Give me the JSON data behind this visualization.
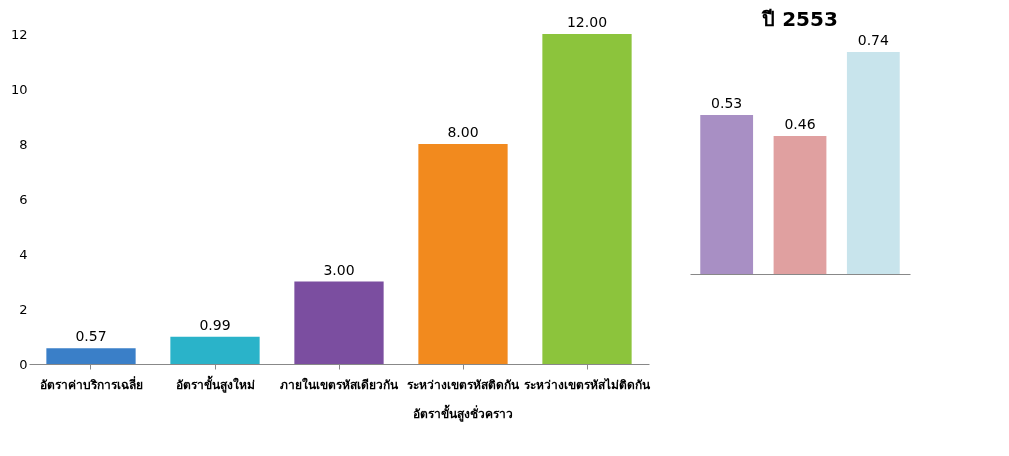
{
  "chart_data": [
    {
      "type": "bar",
      "categories": [
        "อัตราค่าบริการเฉลี่ย",
        "อัตราขั้นสูงใหม่",
        "ภายในเขตรหัสเดียวกัน",
        "ระหว่างเขตรหัสติดกัน",
        "ระหว่างเขตรหัสไม่ติดกัน"
      ],
      "values": [
        0.57,
        0.99,
        3.0,
        8.0,
        12.0
      ],
      "value_labels": [
        "0.57",
        "0.99",
        "3.00",
        "8.00",
        "12.00"
      ],
      "colors": [
        "#3a7fc8",
        "#2ab3c9",
        "#7b4ea0",
        "#f28a1e",
        "#8cc43c"
      ],
      "ylim": [
        0,
        12
      ],
      "yticks": [
        0,
        2,
        4,
        6,
        8,
        10,
        12
      ],
      "grid": false,
      "annotations": [
        "อัตราขั้นสูงชั่วคราว"
      ]
    },
    {
      "type": "bar",
      "title": "ปี 2553",
      "categories": [
        null,
        null,
        null
      ],
      "values": [
        0.53,
        0.46,
        0.74
      ],
      "value_labels": [
        "0.53",
        "0.46",
        "0.74"
      ],
      "colors": [
        "#a88fc4",
        "#e0a0a0",
        "#c8e4ec"
      ]
    }
  ]
}
